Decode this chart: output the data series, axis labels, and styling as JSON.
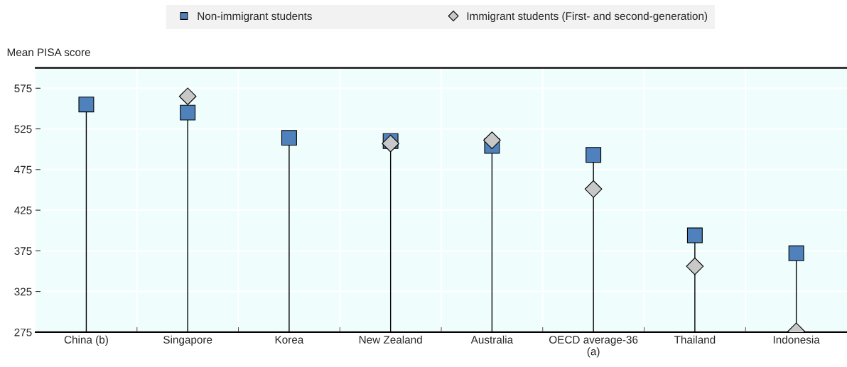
{
  "chart_data": {
    "type": "lollipop",
    "ylabel": "Mean PISA score",
    "categories": [
      "China (b)",
      "Singapore",
      "Korea",
      "New Zealand",
      "Australia",
      "OECD average-36\n(a)",
      "Thailand",
      "Indonesia"
    ],
    "series": [
      {
        "name": "Non-immigrant students",
        "color": "#4f81bd",
        "marker": "square",
        "values": [
          555,
          545,
          514,
          510,
          504,
          493,
          394,
          372
        ]
      },
      {
        "name": "Immigrant students (First- and second-generation)",
        "type": "scatter",
        "color": "#c8c8c8",
        "marker": "diamond",
        "values": [
          null,
          565,
          null,
          507,
          511,
          451,
          356,
          276
        ]
      }
    ],
    "ylim": [
      275,
      600
    ],
    "yticks": [
      275,
      325,
      375,
      425,
      475,
      525,
      575
    ],
    "grid": true,
    "legend": "top"
  }
}
